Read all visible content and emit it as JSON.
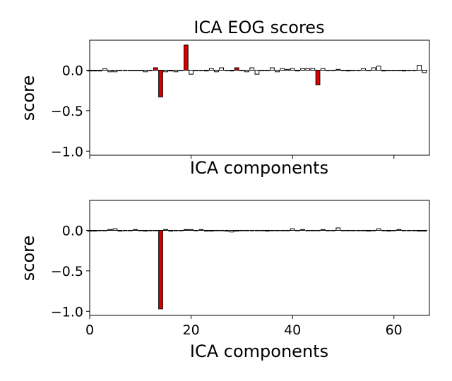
{
  "chart_data": [
    {
      "type": "bar",
      "title": "ICA EOG scores",
      "xlabel": "ICA components",
      "ylabel": "score",
      "xlim": [
        0,
        67
      ],
      "ylim": [
        -1.05,
        0.37
      ],
      "yticks": [
        0.0,
        -0.5,
        -1.0
      ],
      "ytick_labels": [
        "0.0",
        "−0.5",
        "−1.0"
      ],
      "xticks": [
        0,
        20,
        40,
        60
      ],
      "xtick_labels": [],
      "grid": false,
      "colors": {
        "default": "#ffffff",
        "highlight": "#dd0000",
        "edge": "#000000",
        "zero_line": "#000000"
      },
      "highlighted": [
        13,
        14,
        19,
        29,
        45
      ],
      "values": [
        -0.01,
        -0.01,
        -0.01,
        0.02,
        -0.02,
        -0.02,
        0.0,
        0.0,
        0.0,
        0.0,
        0.0,
        -0.02,
        0.0,
        0.03,
        -0.33,
        -0.02,
        -0.01,
        -0.02,
        0.0,
        0.31,
        -0.05,
        0.0,
        0.0,
        -0.01,
        0.02,
        -0.02,
        0.03,
        0.0,
        -0.01,
        0.03,
        0.0,
        -0.02,
        0.03,
        -0.05,
        0.0,
        0.0,
        0.03,
        -0.02,
        0.02,
        0.01,
        0.02,
        -0.01,
        0.02,
        0.02,
        0.02,
        -0.18,
        0.02,
        0.0,
        0.0,
        0.01,
        0.0,
        -0.01,
        0.0,
        0.0,
        0.02,
        0.0,
        0.03,
        0.05,
        -0.01,
        0.0,
        0.0,
        0.0,
        -0.01,
        0.0,
        0.0,
        0.06,
        -0.03
      ]
    },
    {
      "type": "bar",
      "title": "",
      "xlabel": "ICA components",
      "ylabel": "score",
      "xlim": [
        0,
        67
      ],
      "ylim": [
        -1.05,
        0.37
      ],
      "yticks": [
        0.0,
        -0.5,
        -1.0
      ],
      "ytick_labels": [
        "0.0",
        "−0.5",
        "−1.0"
      ],
      "xticks": [
        0,
        20,
        40,
        60
      ],
      "xtick_labels": [
        "0",
        "20",
        "40",
        "60"
      ],
      "grid": false,
      "colors": {
        "default": "#ffffff",
        "highlight": "#dd0000",
        "edge": "#000000",
        "zero_line": "#000000"
      },
      "highlighted": [
        14,
        19
      ],
      "values": [
        -0.01,
        -0.01,
        0.0,
        0.0,
        0.01,
        0.02,
        -0.01,
        0.0,
        0.0,
        0.01,
        0.0,
        -0.01,
        0.0,
        0.0,
        -0.97,
        0.01,
        -0.01,
        0.0,
        0.0,
        0.01,
        0.01,
        0.0,
        0.01,
        -0.01,
        -0.01,
        0.0,
        0.0,
        -0.01,
        -0.02,
        -0.01,
        0.0,
        0.0,
        0.0,
        0.0,
        0.0,
        -0.01,
        0.0,
        0.0,
        0.0,
        0.0,
        0.02,
        0.0,
        0.01,
        0.0,
        0.0,
        0.0,
        0.01,
        0.0,
        0.0,
        0.03,
        0.0,
        0.0,
        0.0,
        0.0,
        0.0,
        -0.01,
        0.0,
        0.02,
        0.0,
        -0.01,
        0.0,
        0.01,
        0.0,
        0.0,
        0.0,
        -0.01,
        -0.01
      ]
    }
  ]
}
